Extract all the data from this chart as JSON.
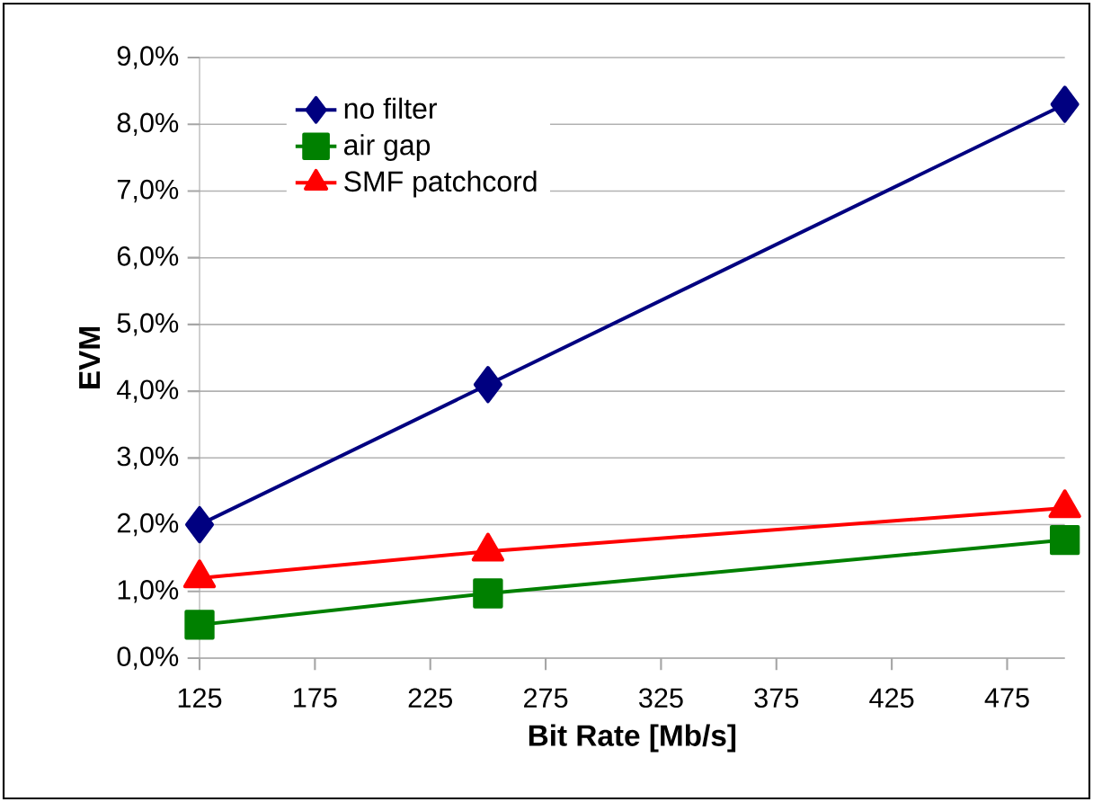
{
  "chart_data": {
    "type": "line",
    "xlabel": "Bit Rate [Mb/s]",
    "ylabel": "EVM",
    "x": [
      125,
      250,
      500
    ],
    "series": [
      {
        "name": "no filter",
        "color": "#000080",
        "marker": "diamond",
        "values": [
          2.0,
          4.1,
          8.3
        ]
      },
      {
        "name": "air gap",
        "color": "#008000",
        "marker": "square",
        "values": [
          0.5,
          0.97,
          1.77
        ]
      },
      {
        "name": "SMF patchcord",
        "color": "#ff0000",
        "marker": "triangle",
        "values": [
          1.2,
          1.6,
          2.25
        ]
      }
    ],
    "xlim": [
      125,
      500
    ],
    "xticks": [
      125,
      175,
      225,
      275,
      325,
      375,
      425,
      475
    ],
    "ylim": [
      0,
      9
    ],
    "yticks": [
      {
        "value": 0,
        "label": "0,0%"
      },
      {
        "value": 1,
        "label": "1,0%"
      },
      {
        "value": 2,
        "label": "2,0%"
      },
      {
        "value": 3,
        "label": "3,0%"
      },
      {
        "value": 4,
        "label": "4,0%"
      },
      {
        "value": 5,
        "label": "5,0%"
      },
      {
        "value": 6,
        "label": "6,0%"
      },
      {
        "value": 7,
        "label": "7,0%"
      },
      {
        "value": 8,
        "label": "8,0%"
      },
      {
        "value": 9,
        "label": "9,0%"
      }
    ],
    "grid": "y",
    "legend": "top left",
    "line_style": "solid"
  }
}
